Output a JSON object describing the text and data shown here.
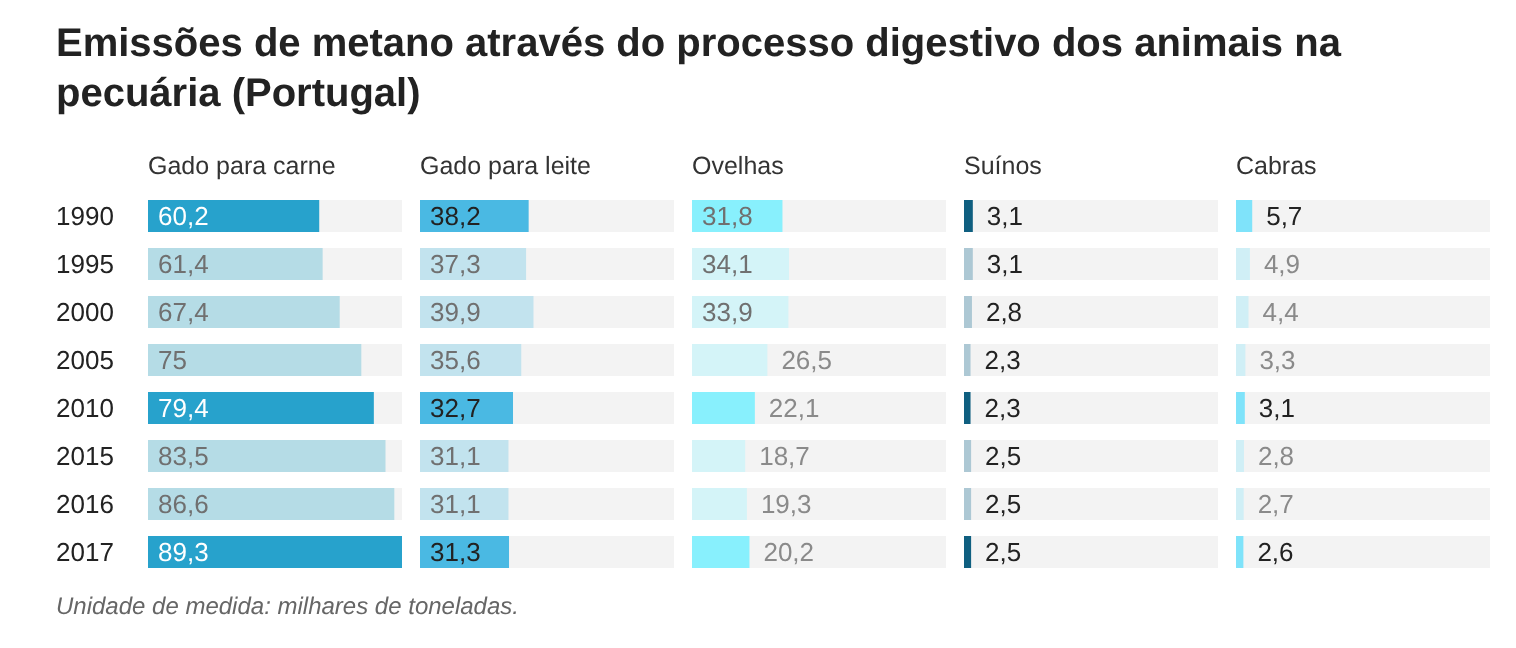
{
  "chart_data": [
    {
      "type": "bar",
      "orientation": "horizontal",
      "title": "Emissões de metano através do processo digestivo dos animais na pecuária (Portugal)",
      "xlabel": "Gado para carne",
      "tick_labels": "y",
      "categories": [
        "1990",
        "1995",
        "2000",
        "2005",
        "2010",
        "2015",
        "2016",
        "2017"
      ],
      "values": [
        60.2,
        61.4,
        67.4,
        75,
        79.4,
        83.5,
        86.6,
        89.3
      ],
      "value_labels": [
        "60,2",
        "61,4",
        "67,4",
        "75",
        "79,4",
        "83,5",
        "86,6",
        "89,3"
      ],
      "colors": [
        "#27a2cc",
        "#b5dce6",
        "#b5dce6",
        "#b5dce6",
        "#27a2cc",
        "#b5dce6",
        "#b5dce6",
        "#27a2cc"
      ],
      "annotations": [
        "Unidade de medida: milhares de toneladas."
      ]
    },
    {
      "type": "bar",
      "orientation": "horizontal",
      "xlabel": "Gado para leite",
      "tick_labels": false,
      "categories": [
        "1990",
        "1995",
        "2000",
        "2005",
        "2010",
        "2015",
        "2016",
        "2017"
      ],
      "values": [
        38.2,
        37.3,
        39.9,
        35.6,
        32.7,
        31.1,
        31.1,
        31.3
      ],
      "value_labels": [
        "38,2",
        "37,3",
        "39,9",
        "35,6",
        "32,7",
        "31,1",
        "31,1",
        "31,3"
      ],
      "colors": [
        "#4ab9e3",
        "#c2e3ee",
        "#c2e3ee",
        "#c2e3ee",
        "#4ab9e3",
        "#c2e3ee",
        "#c2e3ee",
        "#4ab9e3"
      ]
    },
    {
      "type": "bar",
      "orientation": "horizontal",
      "xlabel": "Ovelhas",
      "tick_labels": false,
      "categories": [
        "1990",
        "1995",
        "2000",
        "2005",
        "2010",
        "2015",
        "2016",
        "2017"
      ],
      "values": [
        31.8,
        34.1,
        33.9,
        26.5,
        22.1,
        18.7,
        19.3,
        20.2
      ],
      "value_labels": [
        "31,8",
        "34,1",
        "33,9",
        "26,5",
        "22,1",
        "18,7",
        "19,3",
        "20,2"
      ],
      "colors": [
        "#88f0fd",
        "#d4f4f8",
        "#d4f4f8",
        "#d4f4f8",
        "#88f0fd",
        "#d4f4f8",
        "#d4f4f8",
        "#88f0fd"
      ]
    },
    {
      "type": "bar",
      "orientation": "horizontal",
      "xlabel": "Suínos",
      "tick_labels": false,
      "categories": [
        "1990",
        "1995",
        "2000",
        "2005",
        "2010",
        "2015",
        "2016",
        "2017"
      ],
      "values": [
        3.1,
        3.1,
        2.8,
        2.3,
        2.3,
        2.5,
        2.5,
        2.5
      ],
      "value_labels": [
        "3,1",
        "3,1",
        "2,8",
        "2,3",
        "2,3",
        "2,5",
        "2,5",
        "2,5"
      ],
      "colors": [
        "#0f5f80",
        "#adc8d4",
        "#adc8d4",
        "#adc8d4",
        "#0f5f80",
        "#adc8d4",
        "#adc8d4",
        "#0f5f80"
      ]
    },
    {
      "type": "bar",
      "orientation": "horizontal",
      "xlabel": "Cabras",
      "tick_labels": false,
      "categories": [
        "1990",
        "1995",
        "2000",
        "2005",
        "2010",
        "2015",
        "2016",
        "2017"
      ],
      "values": [
        5.7,
        4.9,
        4.4,
        3.3,
        3.1,
        2.8,
        2.7,
        2.6
      ],
      "value_labels": [
        "5,7",
        "4,9",
        "4,4",
        "3,3",
        "3,1",
        "2,8",
        "2,7",
        "2,6"
      ],
      "colors": [
        "#7fe3fa",
        "#d0eff6",
        "#d0eff6",
        "#d0eff6",
        "#7fe3fa",
        "#d0eff6",
        "#d0eff6",
        "#7fe3fa"
      ]
    }
  ]
}
